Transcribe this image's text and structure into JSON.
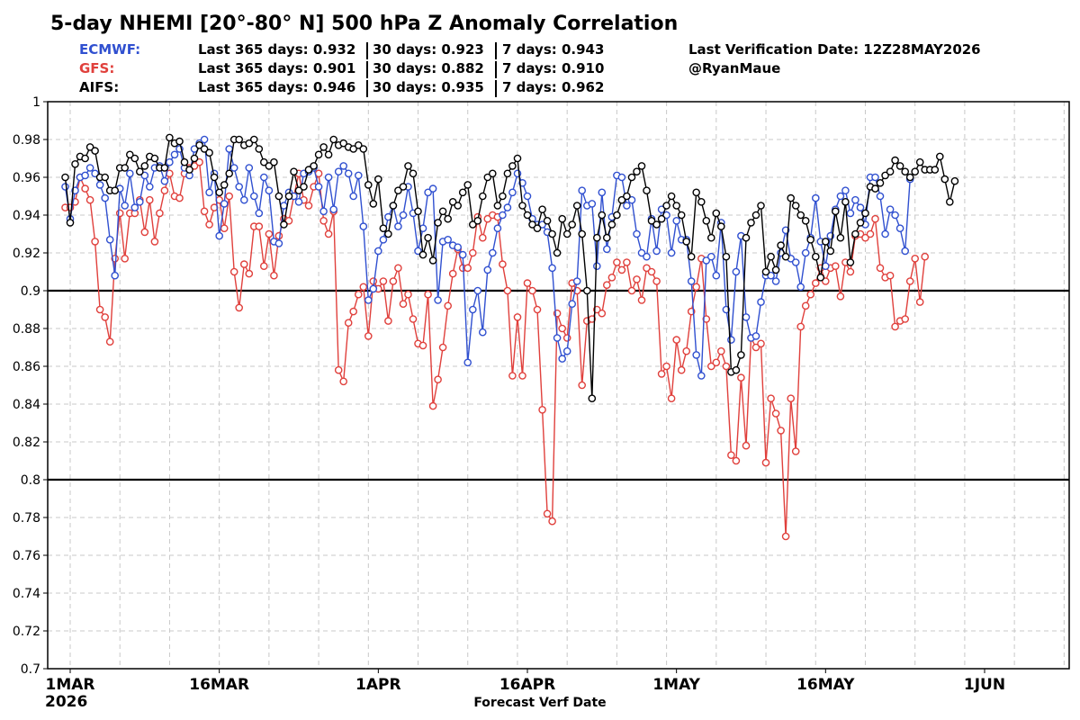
{
  "header": {
    "title": "5-day NHEMI [20°-80° N] 500 hPa Z Anomaly Correlation",
    "last_verification": "Last Verification Date: 12Z28MAY2026",
    "author": "@RyanMaue"
  },
  "models": [
    {
      "name": "ECMWF:",
      "color": "#3050d0",
      "last365": "Last 365 days: 0.932",
      "last30": "30 days: 0.923",
      "last7": "7 days: 0.943"
    },
    {
      "name": "GFS:",
      "color": "#e0403c",
      "last365": "Last 365 days: 0.901",
      "last30": "30 days: 0.882",
      "last7": "7 days: 0.910"
    },
    {
      "name": "AIFS:",
      "color": "#000000",
      "last365": "Last 365 days: 0.946",
      "last30": "30 days: 0.935",
      "last7": "7 days: 0.962"
    }
  ],
  "chart_data": {
    "type": "line",
    "title": "5-day NHEMI [20°-80° N] 500 hPa Z Anomaly Correlation",
    "xlabel": "Forecast Verf Date",
    "ylabel": "",
    "ylim": [
      0.7,
      1.0
    ],
    "yticks": [
      "0.7",
      "0.72",
      "0.74",
      "0.76",
      "0.78",
      "0.8",
      "0.82",
      "0.84",
      "0.86",
      "0.88",
      "0.9",
      "0.92",
      "0.94",
      "0.96",
      "0.98",
      "1"
    ],
    "xticks": [
      {
        "date": "2026-03-01",
        "label": "1MAR"
      },
      {
        "date": "2026-03-16",
        "label": "16MAR"
      },
      {
        "date": "2026-04-01",
        "label": "1APR"
      },
      {
        "date": "2026-04-16",
        "label": "16APR"
      },
      {
        "date": "2026-05-01",
        "label": "1MAY"
      },
      {
        "date": "2026-05-16",
        "label": "16MAY"
      },
      {
        "date": "2026-06-01",
        "label": "1JUN"
      }
    ],
    "year_label": "2026",
    "reference_lines": [
      0.8,
      0.9
    ],
    "grid": true,
    "points_per_day": 2,
    "start_date": "2026-02-28T12",
    "series": [
      {
        "name": "ECMWF",
        "color": "#3050d0",
        "values": [
          0.955,
          0.938,
          0.953,
          0.96,
          0.961,
          0.965,
          0.962,
          0.956,
          0.949,
          0.927,
          0.908,
          0.954,
          0.945,
          0.962,
          0.944,
          0.947,
          0.961,
          0.955,
          0.965,
          0.966,
          0.958,
          0.968,
          0.972,
          0.975,
          0.965,
          0.961,
          0.975,
          0.978,
          0.98,
          0.952,
          0.962,
          0.929,
          0.946,
          0.975,
          0.965,
          0.955,
          0.948,
          0.965,
          0.95,
          0.941,
          0.96,
          0.953,
          0.926,
          0.925,
          0.945,
          0.952,
          0.95,
          0.947,
          0.962,
          0.963,
          0.965,
          0.955,
          0.942,
          0.96,
          0.943,
          0.963,
          0.966,
          0.962,
          0.95,
          0.961,
          0.934,
          0.895,
          0.901,
          0.921,
          0.927,
          0.939,
          0.945,
          0.934,
          0.94,
          0.955,
          0.941,
          0.921,
          0.933,
          0.952,
          0.954,
          0.895,
          0.926,
          0.927,
          0.924,
          0.923,
          0.919,
          0.862,
          0.89,
          0.9,
          0.878,
          0.911,
          0.92,
          0.933,
          0.94,
          0.944,
          0.952,
          0.962,
          0.957,
          0.95,
          0.938,
          0.935,
          0.935,
          0.931,
          0.912,
          0.875,
          0.864,
          0.868,
          0.893,
          0.905,
          0.953,
          0.945,
          0.946,
          0.913,
          0.952,
          0.922,
          0.939,
          0.961,
          0.96,
          0.945,
          0.948,
          0.93,
          0.92,
          0.918,
          0.938,
          0.921,
          0.943,
          0.94,
          0.92,
          0.937,
          0.927,
          0.927,
          0.905,
          0.866,
          0.855,
          0.916,
          0.918,
          0.908,
          0.936,
          0.89,
          0.874,
          0.91,
          0.929,
          0.886,
          0.875,
          0.876,
          0.894,
          0.908,
          0.908,
          0.905,
          0.92,
          0.932,
          0.917,
          0.915,
          0.902,
          0.92,
          0.928,
          0.949,
          0.926,
          0.913,
          0.929,
          0.943,
          0.95,
          0.953,
          0.941,
          0.948,
          0.944,
          0.935,
          0.96,
          0.96,
          0.95,
          0.93,
          0.943,
          0.94,
          0.933,
          0.921,
          0.959
        ]
      },
      {
        "name": "GFS",
        "color": "#e0403c",
        "values": [
          0.944,
          0.944,
          0.947,
          0.96,
          0.954,
          0.948,
          0.926,
          0.89,
          0.886,
          0.873,
          0.917,
          0.941,
          0.917,
          0.941,
          0.941,
          0.948,
          0.931,
          0.948,
          0.926,
          0.941,
          0.953,
          0.962,
          0.95,
          0.949,
          0.962,
          0.965,
          0.966,
          0.968,
          0.942,
          0.935,
          0.944,
          0.948,
          0.933,
          0.95,
          0.91,
          0.891,
          0.914,
          0.909,
          0.934,
          0.934,
          0.913,
          0.93,
          0.908,
          0.929,
          0.938,
          0.937,
          0.95,
          0.962,
          0.948,
          0.945,
          0.955,
          0.962,
          0.937,
          0.93,
          0.942,
          0.858,
          0.852,
          0.883,
          0.889,
          0.898,
          0.902,
          0.876,
          0.905,
          0.901,
          0.905,
          0.884,
          0.905,
          0.912,
          0.893,
          0.898,
          0.885,
          0.872,
          0.871,
          0.898,
          0.839,
          0.853,
          0.87,
          0.892,
          0.909,
          0.922,
          0.912,
          0.912,
          0.92,
          0.939,
          0.928,
          0.938,
          0.94,
          0.939,
          0.914,
          0.9,
          0.855,
          0.886,
          0.855,
          0.904,
          0.9,
          0.89,
          0.837,
          0.782,
          0.778,
          0.888,
          0.88,
          0.875,
          0.904,
          0.9,
          0.85,
          0.884,
          0.885,
          0.89,
          0.888,
          0.903,
          0.907,
          0.915,
          0.911,
          0.915,
          0.9,
          0.906,
          0.895,
          0.912,
          0.91,
          0.905,
          0.856,
          0.86,
          0.843,
          0.874,
          0.858,
          0.868,
          0.889,
          0.902,
          0.917,
          0.885,
          0.86,
          0.862,
          0.868,
          0.86,
          0.813,
          0.81,
          0.854,
          0.818,
          0.875,
          0.87,
          0.872,
          0.809,
          0.843,
          0.835,
          0.826,
          0.77,
          0.843,
          0.815,
          0.881,
          0.892,
          0.898,
          0.904,
          0.912,
          0.905,
          0.912,
          0.913,
          0.897,
          0.915,
          0.91,
          0.929,
          0.93,
          0.928,
          0.93,
          0.938,
          0.912,
          0.907,
          0.908,
          0.881,
          0.884,
          0.885,
          0.905,
          0.917,
          0.894,
          0.918
        ]
      },
      {
        "name": "AIFS",
        "color": "#000000",
        "values": [
          0.96,
          0.936,
          0.967,
          0.971,
          0.97,
          0.976,
          0.974,
          0.96,
          0.96,
          0.953,
          0.953,
          0.965,
          0.965,
          0.972,
          0.97,
          0.963,
          0.966,
          0.971,
          0.97,
          0.965,
          0.965,
          0.981,
          0.978,
          0.979,
          0.968,
          0.964,
          0.97,
          0.977,
          0.975,
          0.973,
          0.96,
          0.952,
          0.956,
          0.962,
          0.98,
          0.98,
          0.977,
          0.978,
          0.98,
          0.975,
          0.968,
          0.966,
          0.968,
          0.95,
          0.935,
          0.95,
          0.963,
          0.953,
          0.955,
          0.964,
          0.966,
          0.972,
          0.976,
          0.972,
          0.98,
          0.977,
          0.978,
          0.976,
          0.975,
          0.977,
          0.975,
          0.956,
          0.946,
          0.959,
          0.933,
          0.93,
          0.945,
          0.953,
          0.955,
          0.966,
          0.962,
          0.942,
          0.919,
          0.928,
          0.916,
          0.936,
          0.942,
          0.938,
          0.947,
          0.945,
          0.952,
          0.956,
          0.935,
          0.937,
          0.95,
          0.96,
          0.962,
          0.945,
          0.95,
          0.962,
          0.966,
          0.97,
          0.945,
          0.94,
          0.935,
          0.933,
          0.943,
          0.937,
          0.93,
          0.92,
          0.938,
          0.93,
          0.935,
          0.945,
          0.93,
          0.9,
          0.843,
          0.928,
          0.94,
          0.928,
          0.935,
          0.94,
          0.948,
          0.95,
          0.96,
          0.963,
          0.966,
          0.953,
          0.937,
          0.935,
          0.938,
          0.945,
          0.95,
          0.945,
          0.94,
          0.926,
          0.918,
          0.952,
          0.947,
          0.937,
          0.928,
          0.941,
          0.934,
          0.918,
          0.857,
          0.858,
          0.866,
          0.928,
          0.936,
          0.94,
          0.945,
          0.91,
          0.918,
          0.911,
          0.924,
          0.918,
          0.949,
          0.945,
          0.94,
          0.937,
          0.927,
          0.918,
          0.907,
          0.926,
          0.921,
          0.942,
          0.928,
          0.947,
          0.915,
          0.93,
          0.936,
          0.941,
          0.955,
          0.954,
          0.957,
          0.961,
          0.963,
          0.969,
          0.966,
          0.963,
          0.96,
          0.963,
          0.968,
          0.964,
          0.964,
          0.964,
          0.971,
          0.959,
          0.947,
          0.958
        ]
      }
    ]
  }
}
